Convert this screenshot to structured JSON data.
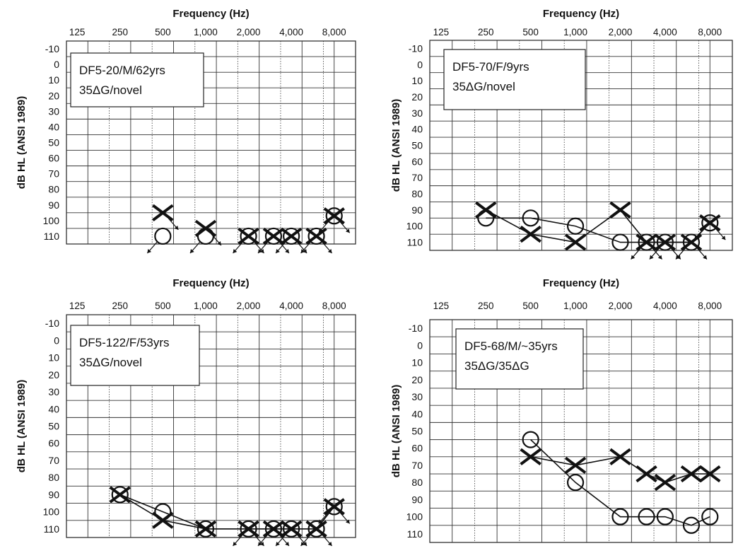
{
  "chart_data": [
    {
      "type": "line",
      "panel": "top-left",
      "title": "",
      "xlabel": "Frequency (Hz)",
      "ylabel": "dB HL (ANSI 1989)",
      "x_tick_labels": [
        "125",
        "250",
        "500",
        "1,000",
        "2,000",
        "4,000",
        "8,000"
      ],
      "y_tick_labels": [
        "-10",
        "0",
        "10",
        "20",
        "30",
        "40",
        "50",
        "60",
        "70",
        "80",
        "90",
        "100",
        "110"
      ],
      "ylim": [
        -10,
        110
      ],
      "y_inverted": true,
      "x_scale": "octave",
      "grid": true,
      "inset_label": [
        "DF5-20/M/62yrs",
        "35ΔG/novel"
      ],
      "series": [
        {
          "symbol": "circle",
          "x": [
            500,
            1000,
            2000,
            3000,
            4000,
            6000,
            8000
          ],
          "y": [
            110,
            110,
            110,
            110,
            110,
            110,
            97
          ],
          "no_response": [
            true,
            true,
            true,
            true,
            true,
            true,
            true
          ],
          "connected": false
        },
        {
          "symbol": "cross",
          "x": [
            500,
            1000,
            2000,
            3000,
            4000,
            6000,
            8000
          ],
          "y": [
            95,
            105,
            110,
            110,
            110,
            110,
            97
          ],
          "no_response": [
            true,
            true,
            true,
            true,
            true,
            true,
            true
          ],
          "connected": false
        }
      ]
    },
    {
      "type": "line",
      "panel": "top-right",
      "title": "",
      "xlabel": "Frequency (Hz)",
      "ylabel": "dB HL (ANSI 1989)",
      "x_tick_labels": [
        "125",
        "250",
        "500",
        "1,000",
        "2,000",
        "4,000",
        "8,000"
      ],
      "y_tick_labels": [
        "-10",
        "0",
        "10",
        "20",
        "30",
        "40",
        "50",
        "60",
        "70",
        "80",
        "90",
        "100",
        "110"
      ],
      "ylim": [
        -10,
        110
      ],
      "y_inverted": true,
      "x_scale": "octave",
      "grid": true,
      "inset_label": [
        "DF5-70/F/9yrs",
        "35ΔG/novel"
      ],
      "series": [
        {
          "symbol": "circle",
          "x": [
            250,
            500,
            1000,
            2000,
            3000,
            4000,
            6000,
            8000
          ],
          "y": [
            95,
            95,
            100,
            110,
            110,
            110,
            110,
            98
          ],
          "no_response": [
            false,
            false,
            false,
            false,
            true,
            true,
            true,
            true
          ],
          "connected": true
        },
        {
          "symbol": "cross",
          "x": [
            250,
            500,
            1000,
            2000,
            3000,
            4000,
            6000,
            8000
          ],
          "y": [
            90,
            105,
            110,
            90,
            110,
            110,
            110,
            98
          ],
          "no_response": [
            false,
            false,
            false,
            false,
            true,
            true,
            true,
            true
          ],
          "connected": true
        }
      ]
    },
    {
      "type": "line",
      "panel": "bottom-left",
      "title": "",
      "xlabel": "Frequency (Hz)",
      "ylabel": "dB HL (ANSI 1989)",
      "x_tick_labels": [
        "125",
        "250",
        "500",
        "1,000",
        "2,000",
        "4,000",
        "8,000"
      ],
      "y_tick_labels": [
        "-10",
        "0",
        "10",
        "20",
        "30",
        "40",
        "50",
        "60",
        "70",
        "80",
        "90",
        "100",
        "110"
      ],
      "ylim": [
        -10,
        110
      ],
      "y_inverted": true,
      "x_scale": "octave",
      "grid": true,
      "inset_label": [
        "DF5-122/F/53yrs",
        "35ΔG/novel"
      ],
      "series": [
        {
          "symbol": "circle",
          "x": [
            250,
            500,
            1000,
            2000,
            3000,
            4000,
            6000,
            8000
          ],
          "y": [
            90,
            100,
            110,
            110,
            110,
            110,
            110,
            97
          ],
          "no_response": [
            false,
            false,
            false,
            true,
            true,
            true,
            true,
            true
          ],
          "connected": true
        },
        {
          "symbol": "cross",
          "x": [
            250,
            500,
            1000,
            2000,
            3000,
            4000,
            6000,
            8000
          ],
          "y": [
            90,
            105,
            110,
            110,
            110,
            110,
            110,
            97
          ],
          "no_response": [
            false,
            false,
            false,
            true,
            true,
            true,
            true,
            true
          ],
          "connected": true
        }
      ]
    },
    {
      "type": "line",
      "panel": "bottom-right",
      "title": "",
      "xlabel": "Frequency (Hz)",
      "ylabel": "dB HL (ANSI 1989)",
      "x_tick_labels": [
        "125",
        "250",
        "500",
        "1,000",
        "2,000",
        "4,000",
        "8,000"
      ],
      "y_tick_labels": [
        "-10",
        "0",
        "10",
        "20",
        "30",
        "40",
        "50",
        "60",
        "70",
        "80",
        "90",
        "100",
        "110"
      ],
      "ylim": [
        -10,
        110
      ],
      "y_inverted": true,
      "x_scale": "octave",
      "grid": true,
      "inset_label": [
        "DF5-68/M/~35yrs",
        "35ΔG/35ΔG"
      ],
      "series": [
        {
          "symbol": "circle",
          "x": [
            500,
            1000,
            2000,
            3000,
            4000,
            6000,
            8000
          ],
          "y": [
            55,
            80,
            100,
            100,
            100,
            105,
            100
          ],
          "no_response": [
            false,
            false,
            false,
            false,
            false,
            false,
            false
          ],
          "connected": true
        },
        {
          "symbol": "cross",
          "x": [
            500,
            1000,
            2000,
            3000,
            4000,
            6000,
            8000
          ],
          "y": [
            65,
            70,
            65,
            75,
            80,
            75,
            75
          ],
          "no_response": [
            false,
            false,
            false,
            false,
            false,
            false,
            false
          ],
          "connected": true
        }
      ]
    }
  ]
}
